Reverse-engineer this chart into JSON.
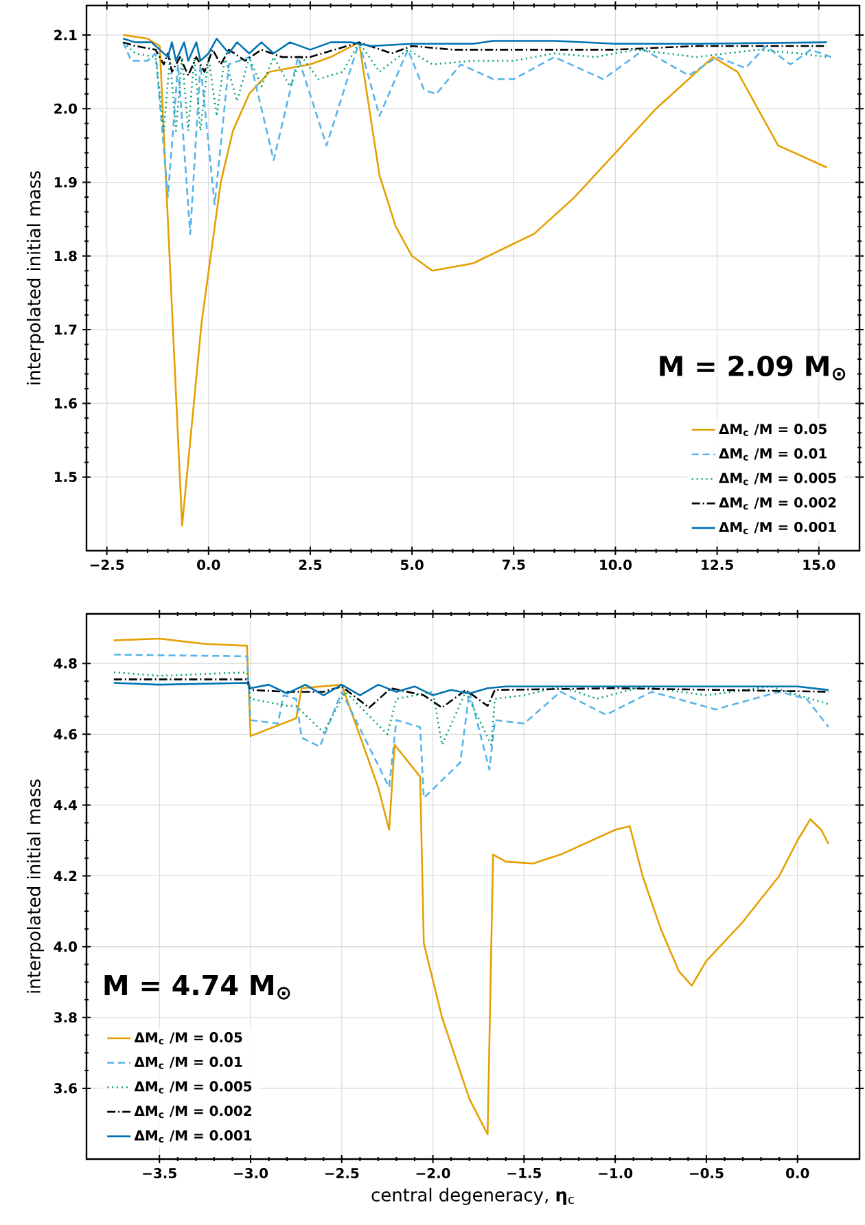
{
  "chart_data": [
    {
      "type": "line",
      "ylabel": "interpolated initial mass",
      "legend_title": "M = 2.09 M$_{⊙}$",
      "legend": "bottom right",
      "grid": true,
      "xlim": [
        -3.0,
        16.0
      ],
      "ylim": [
        1.4,
        2.14
      ],
      "xticks": [
        {
          "value": -2.5,
          "label": "−2.5"
        },
        {
          "value": 0,
          "label": "0.0"
        },
        {
          "value": 2.5,
          "label": "2.5"
        },
        {
          "value": 5,
          "label": "5.0"
        },
        {
          "value": 7.5,
          "label": "7.5"
        },
        {
          "value": 10,
          "label": "10.0"
        },
        {
          "value": 12.5,
          "label": "12.5"
        },
        {
          "value": 15,
          "label": "15.0"
        }
      ],
      "yticks": [
        {
          "value": 1.5,
          "label": "1.5"
        },
        {
          "value": 1.6,
          "label": "1.6"
        },
        {
          "value": 1.7,
          "label": "1.7"
        },
        {
          "value": 1.8,
          "label": "1.8"
        },
        {
          "value": 1.9,
          "label": "1.9"
        },
        {
          "value": 2.0,
          "label": "2.0"
        },
        {
          "value": 2.1,
          "label": "2.1"
        }
      ],
      "series": [
        {
          "name": "ΔM$_{c}$ /M = 0.05",
          "color": "#e69f00",
          "line_style": "solid",
          "x": [
            -2.1,
            -1.5,
            -1.2,
            -0.65,
            -0.17,
            0.3,
            0.6,
            1.0,
            1.5,
            2.5,
            3.0,
            3.7,
            4.2,
            4.6,
            5.0,
            5.5,
            6.5,
            8,
            9,
            10,
            11,
            12.4,
            13,
            13.5,
            14,
            14.8,
            15.2
          ],
          "values": [
            2.1,
            2.095,
            2.085,
            1.434,
            1.71,
            1.9,
            1.97,
            2.02,
            2.05,
            2.06,
            2.07,
            2.09,
            1.91,
            1.84,
            1.8,
            1.78,
            1.79,
            1.83,
            1.88,
            1.94,
            2.0,
            2.07,
            2.05,
            2.0,
            1.95,
            1.93,
            1.92
          ]
        },
        {
          "name": "ΔM$_{c}$ /M = 0.01",
          "color": "#56b4e9",
          "line_style": "dashed",
          "x": [
            -2.1,
            -1.9,
            -1.5,
            -1.3,
            -1.0,
            -0.75,
            -0.45,
            -0.2,
            0.15,
            0.5,
            1.0,
            1.6,
            2.2,
            2.9,
            3.7,
            4.2,
            4.9,
            5.3,
            5.6,
            6.2,
            7.0,
            7.5,
            8.5,
            9.7,
            10.7,
            11.8,
            12.5,
            13.2,
            13.7,
            14.3,
            14.8,
            15.3
          ],
          "values": [
            2.09,
            2.065,
            2.065,
            2.075,
            1.88,
            2.06,
            1.83,
            2.06,
            1.87,
            2.06,
            2.07,
            1.93,
            2.07,
            1.95,
            2.09,
            1.99,
            2.08,
            2.025,
            2.02,
            2.06,
            2.04,
            2.04,
            2.07,
            2.04,
            2.08,
            2.045,
            2.07,
            2.055,
            2.085,
            2.06,
            2.08,
            2.07
          ]
        },
        {
          "name": "ΔM$_{c}$ /M = 0.005",
          "color": "#009e73",
          "line_style": "dotted",
          "x": [
            -2.1,
            -1.8,
            -1.3,
            -1.1,
            -0.95,
            -0.8,
            -0.65,
            -0.5,
            -0.35,
            -0.2,
            0.0,
            0.2,
            0.4,
            0.7,
            1.0,
            1.3,
            1.6,
            2.0,
            2.3,
            2.7,
            3.3,
            3.7,
            4.2,
            4.9,
            5.5,
            6.5,
            7.5,
            8.5,
            9.5,
            10.5,
            12,
            13.5,
            14.5,
            15.2
          ],
          "values": [
            2.09,
            2.075,
            2.07,
            1.97,
            2.07,
            1.97,
            2.07,
            1.97,
            2.07,
            1.97,
            2.07,
            1.99,
            2.07,
            2.01,
            2.07,
            2.03,
            2.07,
            2.03,
            2.07,
            2.04,
            2.05,
            2.09,
            2.05,
            2.08,
            2.06,
            2.065,
            2.065,
            2.075,
            2.07,
            2.08,
            2.07,
            2.08,
            2.075,
            2.07
          ]
        },
        {
          "name": "ΔM$_{c}$ /M = 0.002",
          "color": "#000000",
          "line_style": "dashdot",
          "x": [
            -2.1,
            -1.8,
            -1.3,
            -1.1,
            -1.0,
            -0.9,
            -0.7,
            -0.5,
            -0.3,
            -0.1,
            0.1,
            0.3,
            0.5,
            0.9,
            1.3,
            1.8,
            2.5,
            3.7,
            4.5,
            5.0,
            6,
            8,
            10,
            12,
            15.2
          ],
          "values": [
            2.09,
            2.085,
            2.08,
            2.06,
            2.075,
            2.05,
            2.07,
            2.045,
            2.07,
            2.05,
            2.08,
            2.06,
            2.08,
            2.065,
            2.08,
            2.07,
            2.07,
            2.09,
            2.075,
            2.085,
            2.08,
            2.08,
            2.08,
            2.085,
            2.085
          ]
        },
        {
          "name": "ΔM$_{c}$ /M = 0.001",
          "color": "#0072b2",
          "line_style": "solid",
          "x": [
            -2.1,
            -1.8,
            -1.4,
            -1.2,
            -1.0,
            -0.9,
            -0.8,
            -0.6,
            -0.5,
            -0.3,
            -0.2,
            0,
            0.2,
            0.5,
            0.7,
            1.0,
            1.3,
            1.6,
            2.0,
            2.5,
            3.0,
            3.5,
            4.0,
            5.0,
            6.5,
            7,
            8.5,
            10,
            12,
            15.2
          ],
          "values": [
            2.095,
            2.09,
            2.09,
            2.08,
            2.07,
            2.09,
            2.065,
            2.09,
            2.065,
            2.09,
            2.065,
            2.075,
            2.095,
            2.075,
            2.09,
            2.075,
            2.09,
            2.075,
            2.09,
            2.08,
            2.09,
            2.09,
            2.085,
            2.088,
            2.088,
            2.092,
            2.092,
            2.088,
            2.088,
            2.09
          ]
        }
      ]
    },
    {
      "type": "line",
      "xlabel": "central degeneracy, **η**$_{c}$",
      "ylabel": "interpolated initial mass",
      "legend_title": "M = 4.74 M$_{⊙}$",
      "legend": "bottom left",
      "grid": true,
      "xlim": [
        -3.9,
        0.34
      ],
      "ylim": [
        3.4,
        4.94
      ],
      "xticks": [
        {
          "value": -3.5,
          "label": "−3.5"
        },
        {
          "value": -3.0,
          "label": "−3.0"
        },
        {
          "value": -2.5,
          "label": "−2.5"
        },
        {
          "value": -2.0,
          "label": "−2.0"
        },
        {
          "value": -1.5,
          "label": "−1.5"
        },
        {
          "value": -1.0,
          "label": "−1.0"
        },
        {
          "value": -0.5,
          "label": "−0.5"
        },
        {
          "value": 0,
          "label": "0.0"
        }
      ],
      "yticks": [
        {
          "value": 3.6,
          "label": "3.6"
        },
        {
          "value": 3.8,
          "label": "3.8"
        },
        {
          "value": 4.0,
          "label": "4.0"
        },
        {
          "value": 4.2,
          "label": "4.2"
        },
        {
          "value": 4.4,
          "label": "4.4"
        },
        {
          "value": 4.6,
          "label": "4.6"
        },
        {
          "value": 4.8,
          "label": "4.8"
        }
      ],
      "series": [
        {
          "name": "ΔM$_{c}$ /M = 0.05",
          "color": "#e69f00",
          "line_style": "solid",
          "x": [
            -3.75,
            -3.5,
            -3.25,
            -3.02,
            -3.0,
            -2.8,
            -2.75,
            -2.72,
            -2.5,
            -2.3,
            -2.24,
            -2.21,
            -2.07,
            -2.05,
            -1.95,
            -1.8,
            -1.7,
            -1.67,
            -1.6,
            -1.45,
            -1.3,
            -1.0,
            -0.92,
            -0.85,
            -0.75,
            -0.65,
            -0.58,
            -0.5,
            -0.3,
            -0.1,
            0.0,
            0.07,
            0.13,
            0.17
          ],
          "values": [
            4.865,
            4.87,
            4.855,
            4.85,
            4.595,
            4.635,
            4.645,
            4.73,
            4.74,
            4.45,
            4.33,
            4.57,
            4.48,
            4.01,
            3.8,
            3.57,
            3.47,
            4.26,
            4.24,
            4.235,
            4.26,
            4.33,
            4.34,
            4.2,
            4.05,
            3.93,
            3.89,
            3.96,
            4.07,
            4.2,
            4.3,
            4.36,
            4.33,
            4.29
          ]
        },
        {
          "name": "ΔM$_{c}$ /M = 0.01",
          "color": "#56b4e9",
          "line_style": "dashed",
          "x": [
            -3.75,
            -3.02,
            -3.0,
            -2.85,
            -2.82,
            -2.75,
            -2.72,
            -2.62,
            -2.5,
            -2.24,
            -2.2,
            -2.07,
            -2.05,
            -1.85,
            -1.8,
            -1.69,
            -1.66,
            -1.5,
            -1.3,
            -1.05,
            -0.8,
            -0.45,
            -0.1,
            0.05,
            0.17
          ],
          "values": [
            4.825,
            4.82,
            4.64,
            4.63,
            4.71,
            4.7,
            4.59,
            4.565,
            4.72,
            4.45,
            4.64,
            4.62,
            4.42,
            4.52,
            4.72,
            4.5,
            4.64,
            4.63,
            4.72,
            4.655,
            4.72,
            4.67,
            4.72,
            4.7,
            4.62
          ]
        },
        {
          "name": "ΔM$_{c}$ /M = 0.005",
          "color": "#009e73",
          "line_style": "dotted",
          "x": [
            -3.75,
            -3.5,
            -3.02,
            -3.0,
            -2.8,
            -2.75,
            -2.6,
            -2.48,
            -2.25,
            -2.2,
            -2.0,
            -1.95,
            -1.82,
            -1.68,
            -1.66,
            -1.5,
            -1.3,
            -1.1,
            -0.85,
            -0.5,
            -0.15,
            0.17
          ],
          "values": [
            4.775,
            4.765,
            4.775,
            4.7,
            4.68,
            4.68,
            4.605,
            4.72,
            4.6,
            4.7,
            4.72,
            4.57,
            4.72,
            4.57,
            4.7,
            4.71,
            4.735,
            4.7,
            4.735,
            4.71,
            4.735,
            4.685
          ]
        },
        {
          "name": "ΔM$_{c}$ /M = 0.002",
          "color": "#000000",
          "line_style": "dashdot",
          "x": [
            -3.75,
            -3.02,
            -3.0,
            -2.8,
            -2.6,
            -2.5,
            -2.35,
            -2.23,
            -2.05,
            -1.95,
            -1.82,
            -1.7,
            -1.66,
            -1.0,
            0.17
          ],
          "values": [
            4.755,
            4.755,
            4.725,
            4.72,
            4.72,
            4.735,
            4.675,
            4.73,
            4.71,
            4.675,
            4.725,
            4.68,
            4.725,
            4.73,
            4.72
          ]
        },
        {
          "name": "ΔM$_{c}$ /M = 0.001",
          "color": "#0072b2",
          "line_style": "solid",
          "x": [
            -3.75,
            -3.5,
            -3.02,
            -3.0,
            -2.9,
            -2.8,
            -2.7,
            -2.6,
            -2.5,
            -2.4,
            -2.3,
            -2.2,
            -2.1,
            -2.0,
            -1.9,
            -1.8,
            -1.7,
            -1.6,
            -1.4,
            -1.0,
            -0.5,
            0.0,
            0.17
          ],
          "values": [
            4.745,
            4.74,
            4.745,
            4.73,
            4.74,
            4.715,
            4.74,
            4.71,
            4.74,
            4.71,
            4.74,
            4.72,
            4.735,
            4.71,
            4.725,
            4.715,
            4.73,
            4.735,
            4.735,
            4.735,
            4.735,
            4.735,
            4.725
          ]
        }
      ]
    }
  ]
}
